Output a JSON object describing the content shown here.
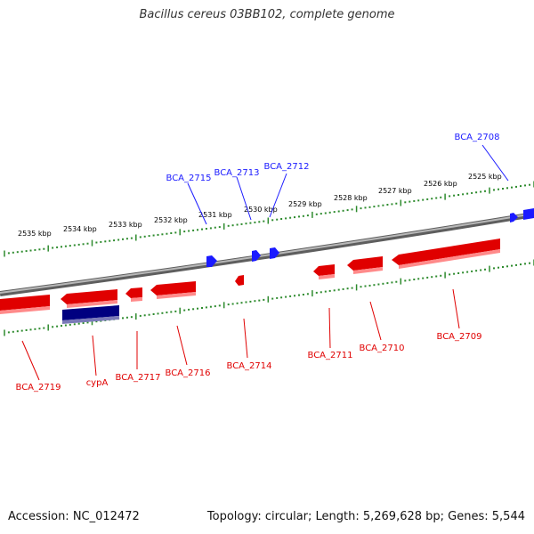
{
  "title": "Bacillus cereus 03BB102, complete genome",
  "footer": {
    "accession": "Accession: NC_012472",
    "summary": "Topology: circular; Length: 5,269,628 bp; Genes: 5,544"
  },
  "colors": {
    "forward_gene": "#e00000",
    "reverse_gene": "#1a1aff",
    "dark_gene": "#000080",
    "tick": "#2e8b2e",
    "backbone": "#8a8a8a"
  },
  "tick_labels": [
    "2535 kbp",
    "2534 kbp",
    "2533 kbp",
    "2532 kbp",
    "2531 kbp",
    "2530 kbp",
    "2529 kbp",
    "2528 kbp",
    "2527 kbp",
    "2526 kbp",
    "2525 kbp"
  ],
  "labels_top": [
    "BCA_2715",
    "BCA_2713",
    "BCA_2712",
    "BCA_2708"
  ],
  "labels_bottom": [
    "BCA_2719",
    "cypA",
    "BCA_2717",
    "BCA_2716",
    "BCA_2714",
    "BCA_2711",
    "BCA_2710",
    "BCA_2709"
  ]
}
